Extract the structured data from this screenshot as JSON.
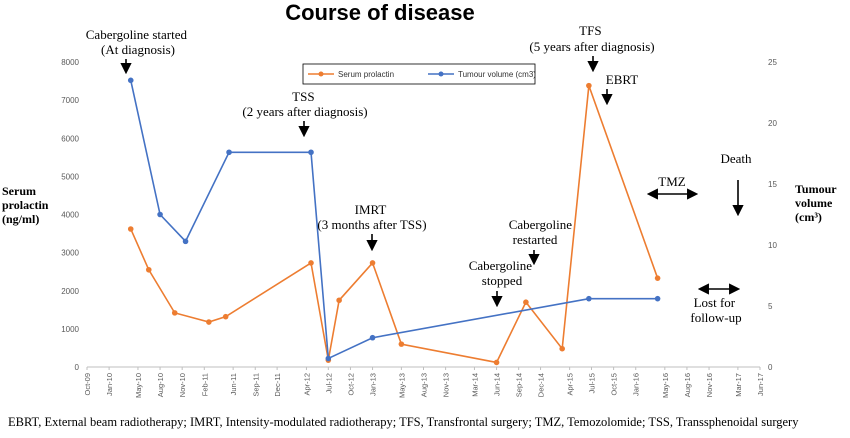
{
  "chart_data": {
    "type": "line",
    "title": "Course of disease",
    "ylabel_left": [
      "Serum",
      "prolactin",
      "(ng/ml)"
    ],
    "ylabel_right": [
      "Tumour",
      "volume",
      "(cm³)"
    ],
    "xlim": [
      "Oct-09",
      "Jan-17"
    ],
    "ylim_left": [
      0,
      8000
    ],
    "ylim_right": [
      0,
      25
    ],
    "yticks_left": [
      "0",
      "1000",
      "2000",
      "3000",
      "4000",
      "5000",
      "6000",
      "7000",
      "8000"
    ],
    "yticks_right": [
      "0",
      "5",
      "10",
      "15",
      "20",
      "25"
    ],
    "xticks": [
      "Oct-09",
      "Jan-10",
      "May-10",
      "Aug-10",
      "Nov-10",
      "Feb-11",
      "Jun-11",
      "Sep-11",
      "Dec-11",
      "Apr-12",
      "Jul-12",
      "Oct-12",
      "Jan-13",
      "May-13",
      "Aug-13",
      "Nov-13",
      "Mar-14",
      "Jun-14",
      "Sep-14",
      "Dec-14",
      "Apr-15",
      "Jul-15",
      "Oct-15",
      "Jan-16",
      "May-16",
      "Aug-16",
      "Nov-16",
      "Mar-17",
      "Jun-17"
    ],
    "grid": false,
    "legend_position": "top-center",
    "series": [
      {
        "name": "Serum prolactin",
        "axis": "left",
        "color": "#ED7D31",
        "points": [
          [
            "2010-04-01",
            3620
          ],
          [
            "2010-06-15",
            2550
          ],
          [
            "2010-10-01",
            1420
          ],
          [
            "2011-02-20",
            1180
          ],
          [
            "2011-05-01",
            1320
          ],
          [
            "2012-04-20",
            2730
          ],
          [
            "2012-07-01",
            180
          ],
          [
            "2012-08-15",
            1750
          ],
          [
            "2013-01-01",
            2730
          ],
          [
            "2013-05-01",
            600
          ],
          [
            "2014-06-01",
            120
          ],
          [
            "2014-10-01",
            1700
          ],
          [
            "2015-03-01",
            480
          ],
          [
            "2015-06-20",
            7380
          ],
          [
            "2016-04-01",
            2330
          ]
        ]
      },
      {
        "name": "Tumour volume (cm3)",
        "axis": "right",
        "color": "#4472C4",
        "points": [
          [
            "2010-04-01",
            23.5
          ],
          [
            "2010-08-01",
            12.5
          ],
          [
            "2010-11-15",
            10.3
          ],
          [
            "2011-05-15",
            17.6
          ],
          [
            "2012-04-20",
            17.6
          ],
          [
            "2012-07-01",
            0.7
          ],
          [
            "2013-01-01",
            2.4
          ],
          [
            "2015-06-20",
            5.6
          ],
          [
            "2016-04-01",
            5.6
          ]
        ]
      }
    ],
    "annotations": [
      {
        "lines": [
          "Cabergoline started",
          "(At diagnosis)"
        ],
        "arrow": "down"
      },
      {
        "lines": [
          "TSS",
          "(2 years after diagnosis)"
        ],
        "arrow": "down"
      },
      {
        "lines": [
          "IMRT",
          "(3 months after TSS)"
        ],
        "arrow": "down"
      },
      {
        "lines": [
          "Cabergoline",
          "stopped"
        ],
        "arrow": "down"
      },
      {
        "lines": [
          "Cabergoline",
          "restarted"
        ],
        "arrow": "down"
      },
      {
        "lines": [
          "TFS",
          "(5 years after diagnosis)"
        ],
        "arrow": "down"
      },
      {
        "lines": [
          "EBRT"
        ],
        "arrow": "down"
      },
      {
        "lines": [
          "TMZ"
        ],
        "arrow": "both"
      },
      {
        "lines": [
          "Death"
        ],
        "arrow": "down"
      },
      {
        "lines": [
          "Lost for",
          "follow-up"
        ],
        "arrow": "both"
      }
    ]
  },
  "footnote": "EBRT, External  beam radiotherapy;  IMRT, Intensity-modulated  radiotherapy;  TFS, Transfrontal surgery;  TMZ, Temozolomide;  TSS, Transsphenoidal surgery"
}
